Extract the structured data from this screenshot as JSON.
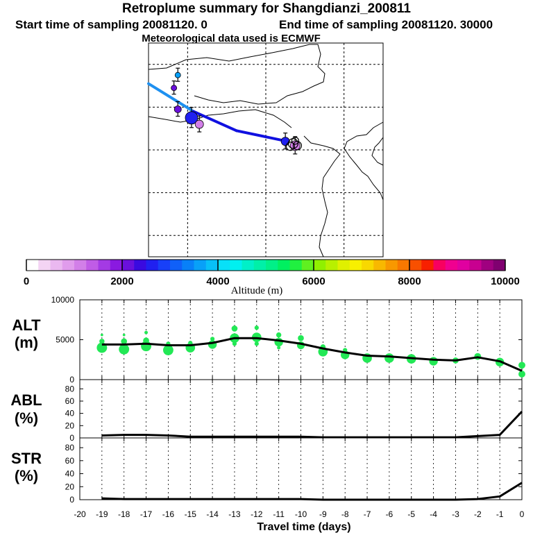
{
  "header": {
    "title": "Retroplume summary for Shangdianzi_200811",
    "start_label": "Start time of sampling 20081120.     0",
    "end_label": "End time of sampling 20081120. 30000",
    "met_label": "Meteorological data used is ECMWF"
  },
  "colorbar": {
    "label": "Altitude (m)",
    "ticks": [
      "0",
      "2000",
      "4000",
      "6000",
      "8000",
      "10000"
    ],
    "colors": [
      "#ffffff",
      "#f4d4f4",
      "#eab8f0",
      "#e09cec",
      "#d27fe8",
      "#c05ce6",
      "#a43ae4",
      "#8a1ae0",
      "#6a10dc",
      "#3a0ae0",
      "#2020f0",
      "#1840f8",
      "#1060f8",
      "#0880f8",
      "#08a0f8",
      "#08c0f8",
      "#08e0f8",
      "#00f0f0",
      "#00f0c8",
      "#00f0a8",
      "#00f088",
      "#00f060",
      "#20f040",
      "#60f020",
      "#90f000",
      "#b8f000",
      "#e0f000",
      "#f8f000",
      "#f8d800",
      "#f8b800",
      "#f89800",
      "#f87800",
      "#f85000",
      "#f82000",
      "#f80060",
      "#f00090",
      "#e000a0",
      "#c80090",
      "#a00080",
      "#800070"
    ]
  },
  "colors": {
    "trajectory_light": "#1e90f0",
    "trajectory_dark": "#1010e0",
    "alt_points": "#22e855",
    "line": "#000000"
  },
  "chart_data": [
    {
      "type": "map",
      "title": "Retroplume summary for Shangdianzi_200811",
      "lon_range": [
        110,
        122
      ],
      "lat_range": [
        35,
        45
      ],
      "grid_lon": [
        112,
        116,
        120
      ],
      "grid_lat": [
        36,
        38,
        40,
        42,
        44
      ],
      "trajectory": [
        {
          "lon": 110.0,
          "lat": 43.1
        },
        {
          "lon": 112.3,
          "lat": 41.8
        },
        {
          "lon": 114.5,
          "lat": 40.9
        },
        {
          "lon": 117.1,
          "lat": 40.4
        }
      ],
      "clusters": [
        {
          "lon": 111.5,
          "lat": 43.5,
          "alt": 3500
        },
        {
          "lon": 111.3,
          "lat": 42.9,
          "alt": 2000
        },
        {
          "lon": 111.5,
          "lat": 41.9,
          "alt": 2200
        },
        {
          "lon": 112.2,
          "lat": 41.5,
          "alt": 2600
        },
        {
          "lon": 112.6,
          "lat": 41.2,
          "alt": 1000
        },
        {
          "lon": 117.0,
          "lat": 40.4,
          "alt": 2500
        },
        {
          "lon": 117.5,
          "lat": 40.2,
          "alt": 1200
        }
      ]
    },
    {
      "type": "line",
      "panel": "ALT",
      "title": "ALT",
      "ylabel": "(m)",
      "ylim": [
        0,
        10000
      ],
      "yticks": [
        10000,
        5000,
        0
      ],
      "x": [
        -19,
        -18,
        -17,
        -16,
        -15,
        -14,
        -13,
        -12,
        -11,
        -10,
        -9,
        -8,
        -7,
        -6,
        -5,
        -4,
        -3,
        -2,
        -1,
        0
      ],
      "line": [
        4400,
        4400,
        4500,
        4300,
        4300,
        4600,
        5200,
        5200,
        4900,
        4500,
        3900,
        3400,
        3000,
        2900,
        2700,
        2500,
        2400,
        2800,
        2300,
        1100
      ],
      "points": [
        {
          "x": -19,
          "y": 4000,
          "s": 12
        },
        {
          "x": -19,
          "y": 4800,
          "s": 6
        },
        {
          "x": -19,
          "y": 5600,
          "s": 3
        },
        {
          "x": -18,
          "y": 3800,
          "s": 12
        },
        {
          "x": -18,
          "y": 4800,
          "s": 7
        },
        {
          "x": -18,
          "y": 5600,
          "s": 3
        },
        {
          "x": -17,
          "y": 4200,
          "s": 12
        },
        {
          "x": -17,
          "y": 4900,
          "s": 7
        },
        {
          "x": -17,
          "y": 5900,
          "s": 4
        },
        {
          "x": -16,
          "y": 3700,
          "s": 12
        },
        {
          "x": -16,
          "y": 4500,
          "s": 5
        },
        {
          "x": -15,
          "y": 4000,
          "s": 11
        },
        {
          "x": -15,
          "y": 4600,
          "s": 5
        },
        {
          "x": -14,
          "y": 4400,
          "s": 10
        },
        {
          "x": -14,
          "y": 5100,
          "s": 5
        },
        {
          "x": -13,
          "y": 5200,
          "s": 11
        },
        {
          "x": -13,
          "y": 6400,
          "s": 7
        },
        {
          "x": -13,
          "y": 4500,
          "s": 5
        },
        {
          "x": -12,
          "y": 5300,
          "s": 11
        },
        {
          "x": -12,
          "y": 6500,
          "s": 5
        },
        {
          "x": -12,
          "y": 4500,
          "s": 5
        },
        {
          "x": -11,
          "y": 4700,
          "s": 10
        },
        {
          "x": -11,
          "y": 5600,
          "s": 6
        },
        {
          "x": -11,
          "y": 4000,
          "s": 4
        },
        {
          "x": -10,
          "y": 4300,
          "s": 9
        },
        {
          "x": -10,
          "y": 5200,
          "s": 7
        },
        {
          "x": -9,
          "y": 3500,
          "s": 11
        },
        {
          "x": -9,
          "y": 4100,
          "s": 6
        },
        {
          "x": -8,
          "y": 3100,
          "s": 10
        },
        {
          "x": -8,
          "y": 3700,
          "s": 5
        },
        {
          "x": -7,
          "y": 2700,
          "s": 11
        },
        {
          "x": -6,
          "y": 2700,
          "s": 11
        },
        {
          "x": -5,
          "y": 2600,
          "s": 11
        },
        {
          "x": -4,
          "y": 2300,
          "s": 10
        },
        {
          "x": -3,
          "y": 2400,
          "s": 7
        },
        {
          "x": -2,
          "y": 2900,
          "s": 8
        },
        {
          "x": -1,
          "y": 2200,
          "s": 10
        },
        {
          "x": 0,
          "y": 1800,
          "s": 8
        },
        {
          "x": 0,
          "y": 700,
          "s": 8
        }
      ]
    },
    {
      "type": "line",
      "panel": "ABL",
      "title": "ABL",
      "ylabel": "(%)",
      "ylim": [
        0,
        95
      ],
      "yticks": [
        80,
        60,
        40,
        20,
        0
      ],
      "x": [
        -19,
        -18,
        -17,
        -16,
        -15,
        -14,
        -13,
        -12,
        -11,
        -10,
        -9,
        -8,
        -7,
        -6,
        -5,
        -4,
        -3,
        -2,
        -1,
        0
      ],
      "y": [
        4,
        5,
        5,
        4,
        2,
        2,
        2,
        2,
        2,
        2,
        1,
        1,
        1,
        1,
        1,
        1,
        1,
        3,
        5,
        43
      ]
    },
    {
      "type": "line",
      "panel": "STR",
      "title": "STR",
      "ylabel": "(%)",
      "ylim": [
        0,
        95
      ],
      "yticks": [
        80,
        60,
        40,
        20,
        0
      ],
      "xlabel": "Travel time (days)",
      "xticks": [
        -20,
        -19,
        -18,
        -17,
        -16,
        -15,
        -14,
        -13,
        -12,
        -11,
        -10,
        -9,
        -8,
        -7,
        -6,
        -5,
        -4,
        -3,
        -2,
        -1,
        0
      ],
      "x": [
        -19,
        -18,
        -17,
        -16,
        -15,
        -14,
        -13,
        -12,
        -11,
        -10,
        -9,
        -8,
        -7,
        -6,
        -5,
        -4,
        -3,
        -2,
        -1,
        0
      ],
      "y": [
        2,
        1,
        1,
        1,
        1,
        1,
        1,
        1,
        1,
        1,
        0,
        0,
        0,
        0,
        0,
        0,
        0,
        1,
        5,
        26
      ]
    }
  ]
}
